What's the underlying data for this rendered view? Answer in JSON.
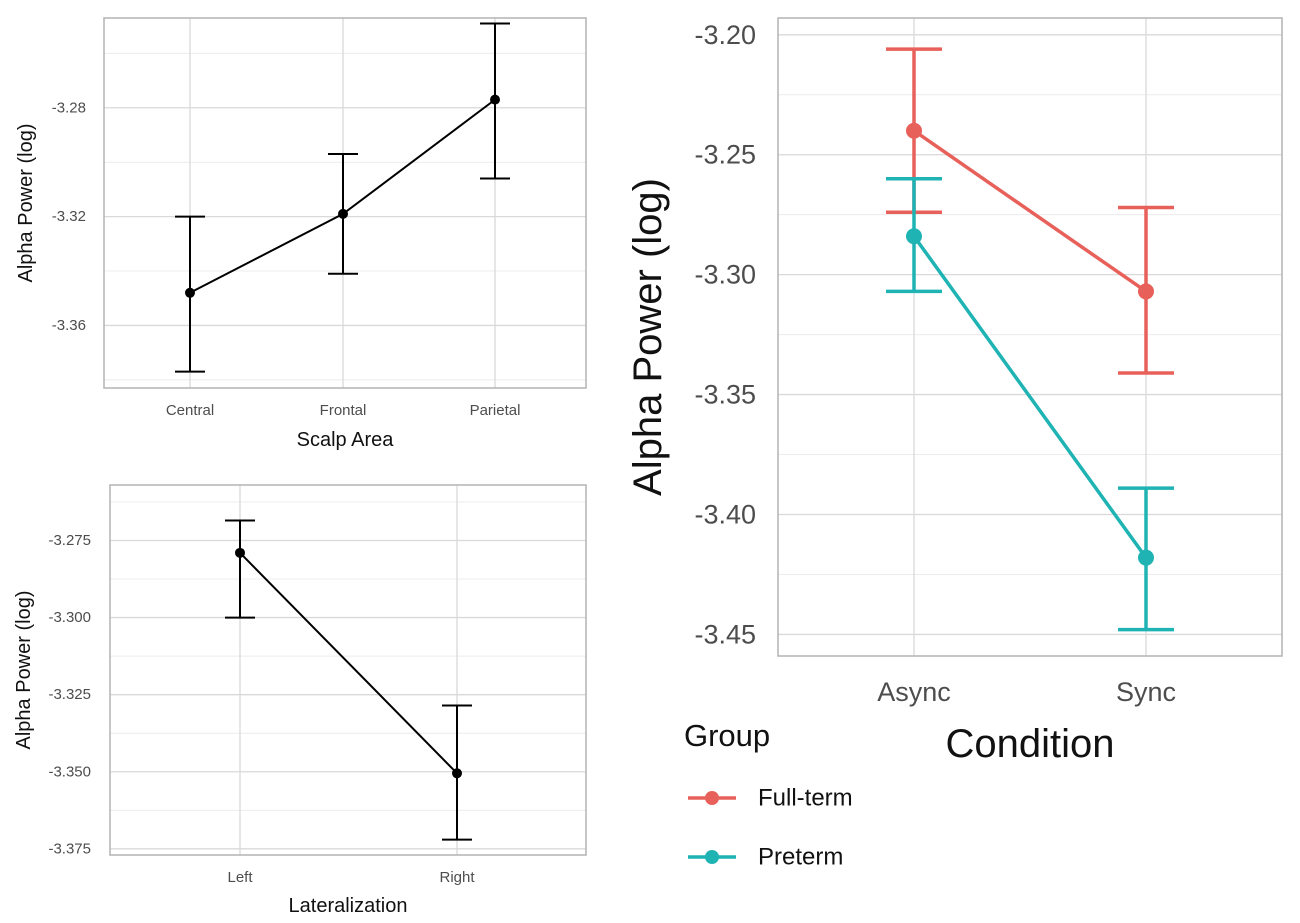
{
  "chart_data": [
    {
      "type": "line",
      "panel": "scalp",
      "xlabel": "Scalp Area",
      "ylabel": "Alpha Power (log)",
      "categories": [
        "Central",
        "Frontal",
        "Parietal"
      ],
      "ylim": [
        -3.383,
        -3.247
      ],
      "yticks": [
        -3.36,
        -3.32,
        -3.28
      ],
      "ytick_labels": [
        "-3.36",
        "-3.32",
        "-3.28"
      ],
      "series": [
        {
          "name": "all",
          "color": "#000000",
          "values": [
            -3.348,
            -3.319,
            -3.277
          ],
          "lower": [
            -3.377,
            -3.341,
            -3.306
          ],
          "upper": [
            -3.32,
            -3.297,
            -3.249
          ]
        }
      ]
    },
    {
      "type": "line",
      "panel": "laterality",
      "xlabel": "Lateralization",
      "ylabel": "Alpha Power (log)",
      "categories": [
        "Left",
        "Right"
      ],
      "ylim": [
        -3.377,
        -3.257
      ],
      "yticks": [
        -3.375,
        -3.35,
        -3.325,
        -3.3,
        -3.275
      ],
      "ytick_labels": [
        "-3.375",
        "-3.350",
        "-3.325",
        "-3.300",
        "-3.275"
      ],
      "series": [
        {
          "name": "all",
          "color": "#000000",
          "values": [
            -3.279,
            -3.3505
          ],
          "lower": [
            -3.3,
            -3.372
          ],
          "upper": [
            -3.2685,
            -3.3285
          ]
        }
      ]
    },
    {
      "type": "line",
      "panel": "condition",
      "xlabel": "Condition",
      "ylabel": "Alpha Power (log)",
      "categories": [
        "Async",
        "Sync"
      ],
      "ylim": [
        -3.459,
        -3.193
      ],
      "yticks": [
        -3.45,
        -3.4,
        -3.35,
        -3.3,
        -3.25,
        -3.2
      ],
      "ytick_labels": [
        "-3.45",
        "-3.40",
        "-3.35",
        "-3.30",
        "-3.25",
        "-3.20"
      ],
      "legend_title": "Group",
      "legend_position": "bottom-left",
      "series": [
        {
          "name": "Full-term",
          "color": "#e8605a",
          "values": [
            -3.24,
            -3.307
          ],
          "lower": [
            -3.274,
            -3.341
          ],
          "upper": [
            -3.206,
            -3.272
          ]
        },
        {
          "name": "Preterm",
          "color": "#1fb3b3",
          "values": [
            -3.284,
            -3.418
          ],
          "lower": [
            -3.307,
            -3.448
          ],
          "upper": [
            -3.26,
            -3.389
          ]
        }
      ]
    }
  ]
}
